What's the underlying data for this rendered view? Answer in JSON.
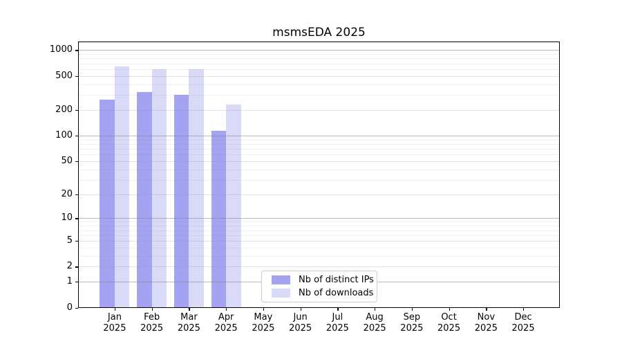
{
  "title": "msmsEDA 2025",
  "chart_data": {
    "type": "bar",
    "title": "msmsEDA 2025",
    "categories": [
      "Jan",
      "Feb",
      "Mar",
      "Apr",
      "May",
      "Jun",
      "Jul",
      "Aug",
      "Sep",
      "Oct",
      "Nov",
      "Dec"
    ],
    "category_year": "2025",
    "series": [
      {
        "name": "Nb of distinct IPs",
        "color": "#a3a3f1",
        "values": [
          265,
          325,
          300,
          113,
          0,
          0,
          0,
          0,
          0,
          0,
          0,
          0
        ]
      },
      {
        "name": "Nb of downloads",
        "color": "#d9d9f8",
        "values": [
          640,
          595,
          600,
          230,
          0,
          0,
          0,
          0,
          0,
          0,
          0,
          0
        ]
      }
    ],
    "yticks": [
      0,
      1,
      2,
      5,
      10,
      20,
      50,
      100,
      200,
      500,
      1000
    ],
    "scale": "log10(value+1)",
    "ylim": [
      0,
      1260
    ],
    "xlabel": "",
    "ylabel": "",
    "grid": true,
    "legend_position": "inside-bottom-center"
  },
  "colors": {
    "bar_distinct_ips": "#a3a3f1",
    "bar_downloads": "#d9d9f8",
    "major_grid": "#c1c1c1",
    "minor_grid_labeled": "#e2e2e2",
    "minor_grid_unlabeled": "#efefef",
    "spine": "#000000",
    "text": "#000000",
    "background": "#ffffff",
    "legend_border": "#cccccc"
  }
}
